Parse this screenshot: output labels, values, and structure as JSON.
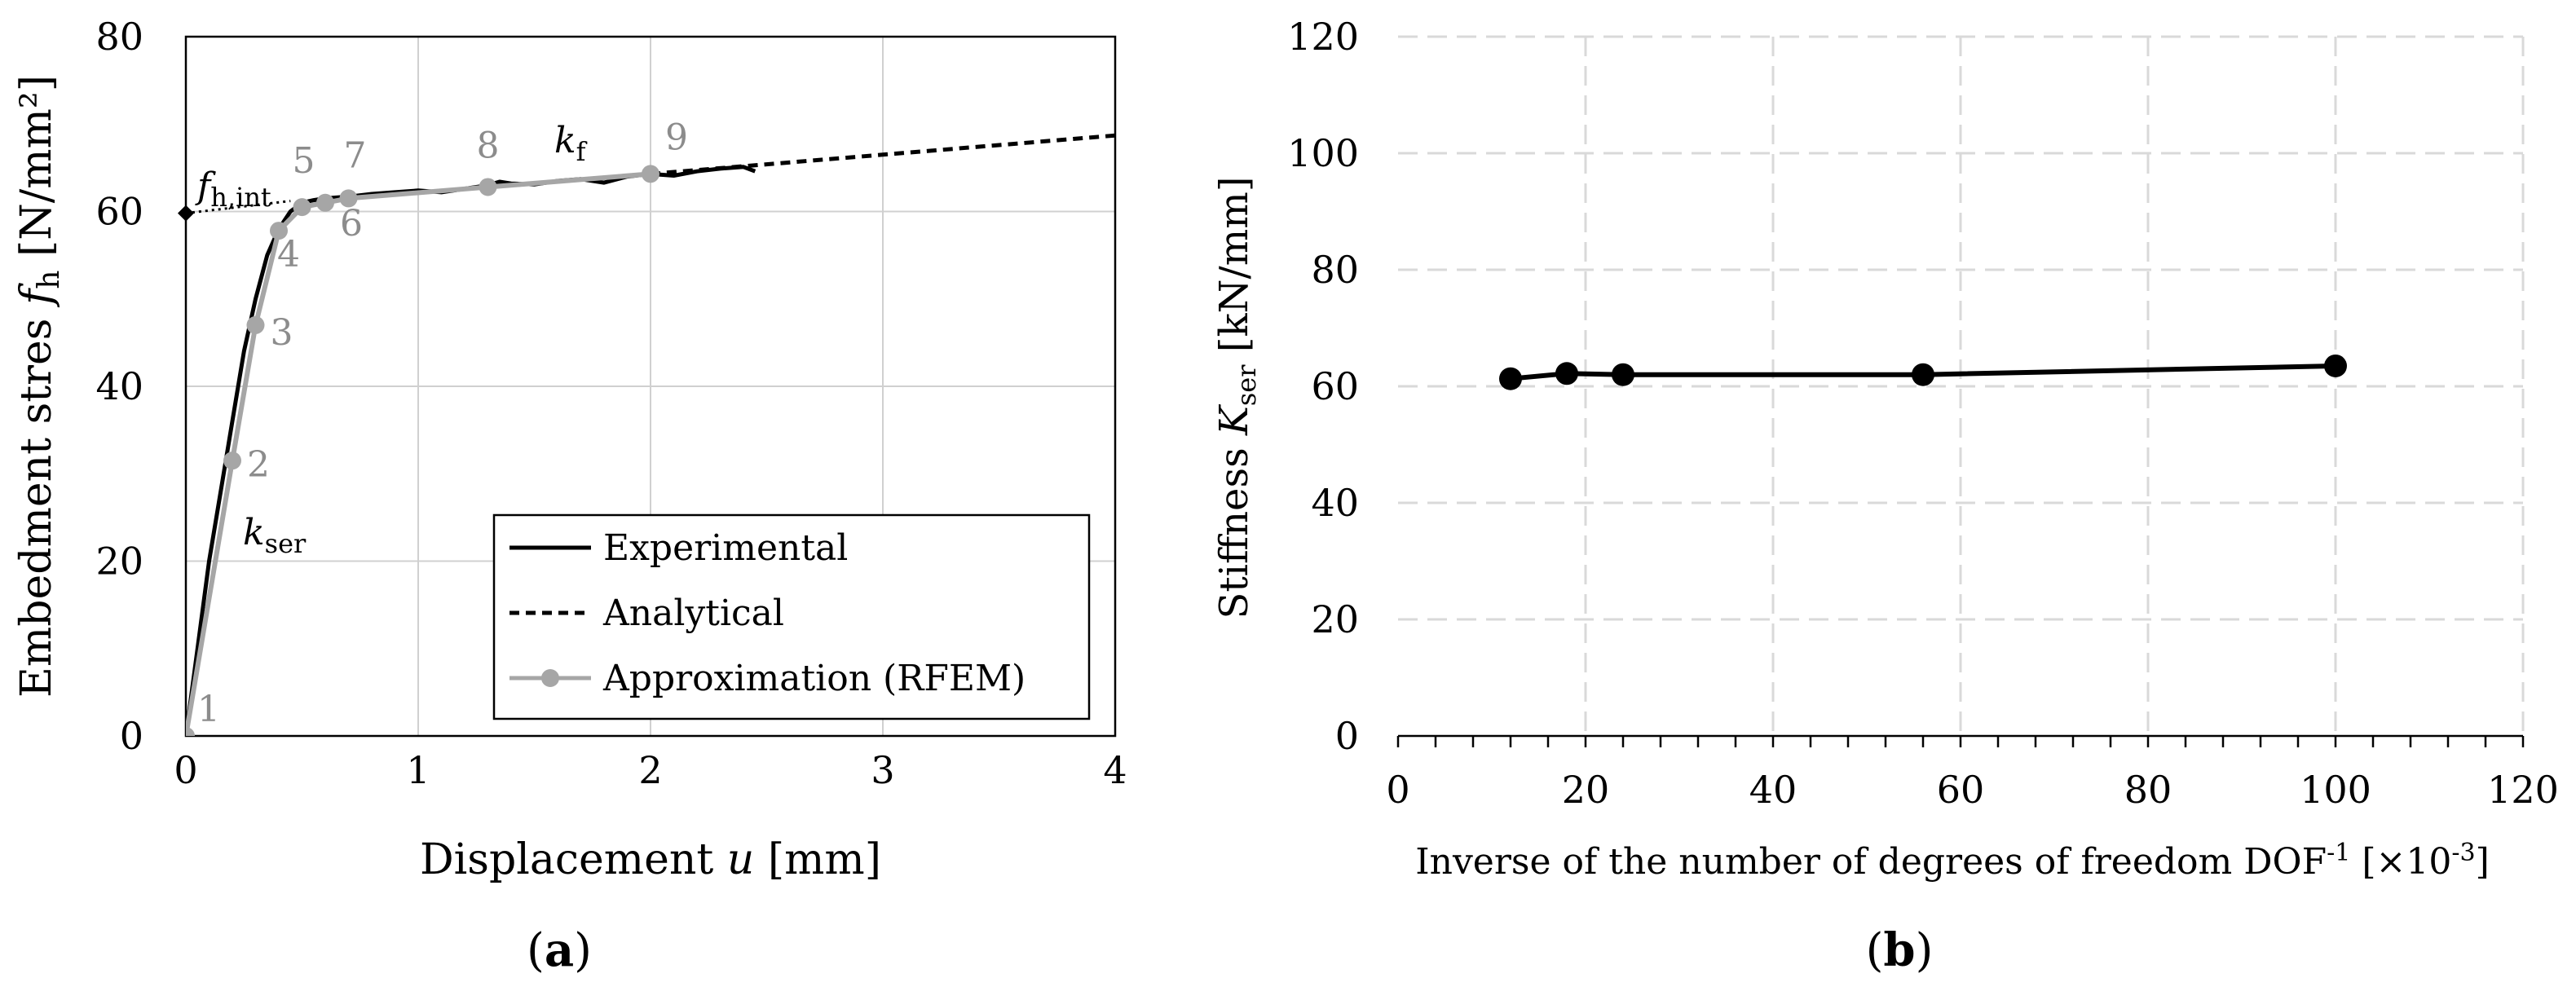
{
  "chart_data": [
    {
      "type": "line",
      "panel_label": "a",
      "xlabel": "Displacement ",
      "xlabel_var": "u",
      "xlabel_unit": " [mm]",
      "ylabel": "Embedment stres ",
      "ylabel_var": "f",
      "ylabel_sub": "h",
      "ylabel_unit": " [N/mm²]",
      "xlim": [
        0,
        4
      ],
      "ylim": [
        0,
        80
      ],
      "xticks": [
        0,
        1,
        2,
        3,
        4
      ],
      "yticks": [
        0,
        20,
        40,
        60,
        80
      ],
      "grid": true,
      "legend_position": "bottom-right",
      "series": [
        {
          "name": "Experimental",
          "style": "solid",
          "color": "#000000",
          "x": [
            0,
            0.05,
            0.1,
            0.15,
            0.2,
            0.25,
            0.3,
            0.35,
            0.4,
            0.45,
            0.5,
            0.55,
            0.6,
            0.7,
            0.8,
            0.9,
            1.0,
            1.1,
            1.2,
            1.3,
            1.35,
            1.4,
            1.5,
            1.6,
            1.7,
            1.8,
            1.9,
            2.0,
            2.1,
            2.2,
            2.3,
            2.4,
            2.45
          ],
          "y": [
            0,
            10,
            20,
            28,
            36,
            44,
            50,
            55,
            58,
            60,
            61,
            61.3,
            61.5,
            61.7,
            62,
            62.2,
            62.4,
            62.2,
            62.6,
            63,
            63.4,
            63.2,
            63.1,
            63.5,
            63.7,
            63.3,
            64,
            64.3,
            64.1,
            64.6,
            64.9,
            65.1,
            64.6
          ]
        },
        {
          "name": "Analytical",
          "style": "dashed",
          "color": "#000000",
          "x": [
            2.0,
            4.0
          ],
          "y": [
            64.3,
            68.7
          ]
        },
        {
          "name": "Approximation (RFEM)",
          "style": "solid-marker",
          "color": "#a6a6a6",
          "x": [
            0,
            0.2,
            0.3,
            0.4,
            0.5,
            0.6,
            0.7,
            1.3,
            2.0
          ],
          "y": [
            0,
            31.5,
            47,
            57.8,
            60.5,
            61,
            61.5,
            62.8,
            64.3
          ],
          "point_labels": [
            "1",
            "2",
            "3",
            "4",
            "5",
            "6",
            "7",
            "8",
            "9"
          ]
        }
      ],
      "intercept_line": {
        "x": [
          0,
          0.45
        ],
        "y": [
          59.8,
          61.2
        ]
      },
      "annotations": {
        "fh_int_main": "f",
        "fh_int_sub": "h,int",
        "kser_main": "k",
        "kser_sub": "ser",
        "kf_main": "k",
        "kf_sub": "f"
      }
    },
    {
      "type": "line",
      "panel_label": "b",
      "xlabel": "Inverse of the number of degrees of freedom DOF",
      "xlabel_sup": "-1",
      "xlabel_unit": " [×10",
      "xlabel_unit_sup": "-3",
      "xlabel_unit_end": "]",
      "ylabel": "Stiffness ",
      "ylabel_var": "K",
      "ylabel_sub": "ser",
      "ylabel_unit": " [kN/mm]",
      "xlim": [
        0,
        120
      ],
      "ylim": [
        0,
        120
      ],
      "xticks": [
        0,
        20,
        40,
        60,
        80,
        100,
        120
      ],
      "yticks": [
        0,
        20,
        40,
        60,
        80,
        100,
        120
      ],
      "grid": true,
      "series": [
        {
          "name": "Stiffness",
          "style": "solid-marker",
          "color": "#000000",
          "x": [
            12,
            18,
            24,
            56,
            100
          ],
          "y": [
            61.3,
            62.2,
            62.0,
            62.0,
            63.5
          ]
        }
      ]
    }
  ]
}
